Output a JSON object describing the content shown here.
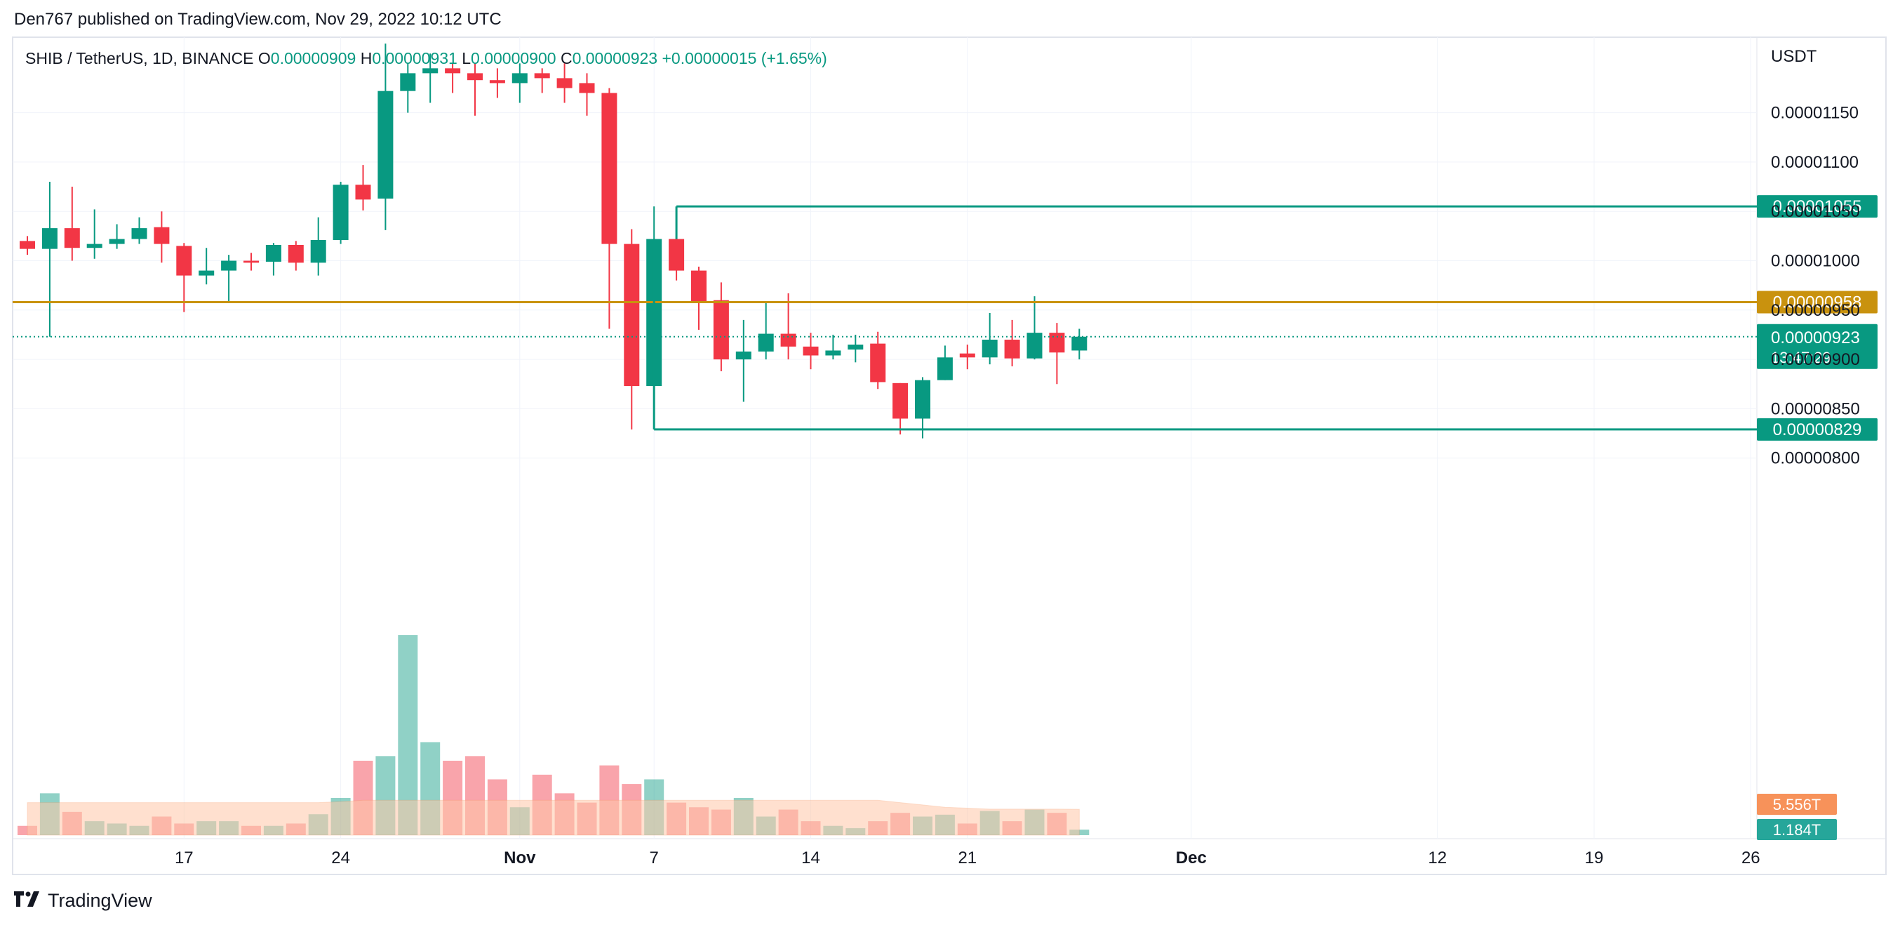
{
  "header": {
    "published": "Den767 published on TradingView.com, Nov 29, 2022 10:12 UTC"
  },
  "legend": {
    "symbol": "SHIB / TetherUS, 1D, BINANCE",
    "open_label": "O",
    "open": "0.00000909",
    "high_label": "H",
    "high": "0.00000931",
    "low_label": "L",
    "low": "0.00000900",
    "close_label": "C",
    "close": "0.00000923",
    "change": "+0.00000015 (+1.65%)"
  },
  "footer": {
    "brand": "TradingView"
  },
  "colors": {
    "up": "#089981",
    "down": "#f23645",
    "level": "#c9920e",
    "vol_ma": "#ffc8a8"
  },
  "chart_data": {
    "type": "candlestick",
    "currency_label": "USDT",
    "y_ticks": [
      "0.00001150",
      "0.00001100",
      "0.00001050",
      "0.00001000",
      "0.00000950",
      "0.00000900",
      "0.00000850",
      "0.00000800"
    ],
    "y_range": [
      7.9e-06,
      1.185e-05
    ],
    "x_ticks": [
      {
        "label": "17",
        "bold": false,
        "day": 7
      },
      {
        "label": "24",
        "bold": false,
        "day": 14
      },
      {
        "label": "Nov",
        "bold": true,
        "day": 22
      },
      {
        "label": "7",
        "bold": false,
        "day": 28
      },
      {
        "label": "14",
        "bold": false,
        "day": 35
      },
      {
        "label": "21",
        "bold": false,
        "day": 42
      },
      {
        "label": "Dec",
        "bold": true,
        "day": 52
      },
      {
        "label": "12",
        "bold": false,
        "day": 63
      },
      {
        "label": "19",
        "bold": false,
        "day": 70
      },
      {
        "label": "26",
        "bold": false,
        "day": 77
      }
    ],
    "candles": [
      {
        "o": 1.02,
        "h": 1.025,
        "l": 1.006,
        "c": 1.012
      },
      {
        "o": 1.012,
        "h": 1.08,
        "l": 0.923,
        "c": 1.033
      },
      {
        "o": 1.033,
        "h": 1.075,
        "l": 1.0,
        "c": 1.013
      },
      {
        "o": 1.013,
        "h": 1.052,
        "l": 1.002,
        "c": 1.017
      },
      {
        "o": 1.017,
        "h": 1.037,
        "l": 1.012,
        "c": 1.022
      },
      {
        "o": 1.022,
        "h": 1.044,
        "l": 1.017,
        "c": 1.033
      },
      {
        "o": 1.034,
        "h": 1.05,
        "l": 0.998,
        "c": 1.017
      },
      {
        "o": 1.015,
        "h": 1.018,
        "l": 0.948,
        "c": 0.985
      },
      {
        "o": 0.985,
        "h": 1.013,
        "l": 0.976,
        "c": 0.99
      },
      {
        "o": 0.99,
        "h": 1.006,
        "l": 0.957,
        "c": 1.0
      },
      {
        "o": 1.0,
        "h": 1.008,
        "l": 0.99,
        "c": 0.998
      },
      {
        "o": 0.999,
        "h": 1.018,
        "l": 0.985,
        "c": 1.016
      },
      {
        "o": 1.016,
        "h": 1.02,
        "l": 0.99,
        "c": 0.998
      },
      {
        "o": 0.998,
        "h": 1.044,
        "l": 0.985,
        "c": 1.021
      },
      {
        "o": 1.021,
        "h": 1.08,
        "l": 1.017,
        "c": 1.077
      },
      {
        "o": 1.077,
        "h": 1.097,
        "l": 1.051,
        "c": 1.062
      },
      {
        "o": 1.063,
        "h": 1.22,
        "l": 1.031,
        "c": 1.172
      },
      {
        "o": 1.172,
        "h": 1.2,
        "l": 1.15,
        "c": 1.19
      },
      {
        "o": 1.19,
        "h": 1.21,
        "l": 1.16,
        "c": 1.195
      },
      {
        "o": 1.195,
        "h": 1.2,
        "l": 1.17,
        "c": 1.19
      },
      {
        "o": 1.19,
        "h": 1.2,
        "l": 1.147,
        "c": 1.183
      },
      {
        "o": 1.183,
        "h": 1.195,
        "l": 1.165,
        "c": 1.18
      },
      {
        "o": 1.18,
        "h": 1.2,
        "l": 1.16,
        "c": 1.19
      },
      {
        "o": 1.19,
        "h": 1.195,
        "l": 1.17,
        "c": 1.185
      },
      {
        "o": 1.185,
        "h": 1.2,
        "l": 1.16,
        "c": 1.175
      },
      {
        "o": 1.18,
        "h": 1.19,
        "l": 1.147,
        "c": 1.17
      },
      {
        "o": 1.17,
        "h": 1.175,
        "l": 0.931,
        "c": 1.017
      },
      {
        "o": 1.017,
        "h": 1.032,
        "l": 0.829,
        "c": 0.873
      },
      {
        "o": 0.873,
        "h": 1.055,
        "l": 0.863,
        "c": 1.022
      },
      {
        "o": 1.022,
        "h": 1.047,
        "l": 0.98,
        "c": 0.99
      },
      {
        "o": 0.99,
        "h": 0.994,
        "l": 0.93,
        "c": 0.958
      },
      {
        "o": 0.96,
        "h": 0.978,
        "l": 0.888,
        "c": 0.9
      },
      {
        "o": 0.9,
        "h": 0.94,
        "l": 0.857,
        "c": 0.908
      },
      {
        "o": 0.908,
        "h": 0.958,
        "l": 0.9,
        "c": 0.926
      },
      {
        "o": 0.926,
        "h": 0.967,
        "l": 0.9,
        "c": 0.913
      },
      {
        "o": 0.913,
        "h": 0.927,
        "l": 0.89,
        "c": 0.904
      },
      {
        "o": 0.904,
        "h": 0.925,
        "l": 0.9,
        "c": 0.909
      },
      {
        "o": 0.91,
        "h": 0.925,
        "l": 0.897,
        "c": 0.915
      },
      {
        "o": 0.916,
        "h": 0.928,
        "l": 0.87,
        "c": 0.877
      },
      {
        "o": 0.876,
        "h": 0.876,
        "l": 0.824,
        "c": 0.84
      },
      {
        "o": 0.84,
        "h": 0.882,
        "l": 0.82,
        "c": 0.879
      },
      {
        "o": 0.879,
        "h": 0.914,
        "l": 0.879,
        "c": 0.902
      },
      {
        "o": 0.906,
        "h": 0.915,
        "l": 0.89,
        "c": 0.902
      },
      {
        "o": 0.902,
        "h": 0.947,
        "l": 0.895,
        "c": 0.92
      },
      {
        "o": 0.92,
        "h": 0.94,
        "l": 0.893,
        "c": 0.901
      },
      {
        "o": 0.901,
        "h": 0.964,
        "l": 0.9,
        "c": 0.927
      },
      {
        "o": 0.927,
        "h": 0.937,
        "l": 0.875,
        "c": 0.907
      },
      {
        "o": 0.909,
        "h": 0.931,
        "l": 0.9,
        "c": 0.923
      }
    ],
    "first_candle_day": 0,
    "volumes_t": [
      2.0,
      9.0,
      5.0,
      3.0,
      2.5,
      2.0,
      4.0,
      2.5,
      3.0,
      3.0,
      2.0,
      2.0,
      2.5,
      4.5,
      8.0,
      16.0,
      17.0,
      43.0,
      20.0,
      16.0,
      17.0,
      12.0,
      6.0,
      13.0,
      9.0,
      7.0,
      15.0,
      11.0,
      12.0,
      7.0,
      6.0,
      5.5,
      8.0,
      4.0,
      5.5,
      3.0,
      2.0,
      1.5,
      3.0,
      4.8,
      4.0,
      4.4,
      2.5,
      5.2,
      3.0,
      5.5,
      4.8,
      1.184
    ],
    "volume_ma_t": [
      7.0,
      7.0,
      7.0,
      7.0,
      7.0,
      7.0,
      7.0,
      7.0,
      7.0,
      7.0,
      7.0,
      7.0,
      7.0,
      7.0,
      7.2,
      7.5,
      7.5,
      7.5,
      7.5,
      7.5,
      7.5,
      7.5,
      7.5,
      7.5,
      7.5,
      7.5,
      7.5,
      7.5,
      7.5,
      7.5,
      7.5,
      7.5,
      7.5,
      7.5,
      7.5,
      7.5,
      7.5,
      7.5,
      7.5,
      7.0,
      6.5,
      6.0,
      5.8,
      5.6,
      5.6,
      5.6,
      5.6,
      5.556
    ],
    "volume_max_t": 43.0,
    "levels": [
      {
        "price": 1.055e-05,
        "label": "0.00001055",
        "color": "#089981",
        "start_day": 29
      },
      {
        "price": 9.58e-06,
        "label": "0.00000958",
        "color": "#c9920e",
        "start_day": 0
      },
      {
        "price": 8.29e-06,
        "label": "0.00000829",
        "color": "#089981",
        "start_day": 28
      }
    ],
    "current_price": {
      "price": 9.23e-06,
      "label": "0.00000923",
      "countdown": "13:47:29"
    },
    "volume_badges": [
      {
        "label": "5.556T",
        "color": "#f7925a"
      },
      {
        "label": "1.184T",
        "color": "#26a69a"
      }
    ]
  }
}
